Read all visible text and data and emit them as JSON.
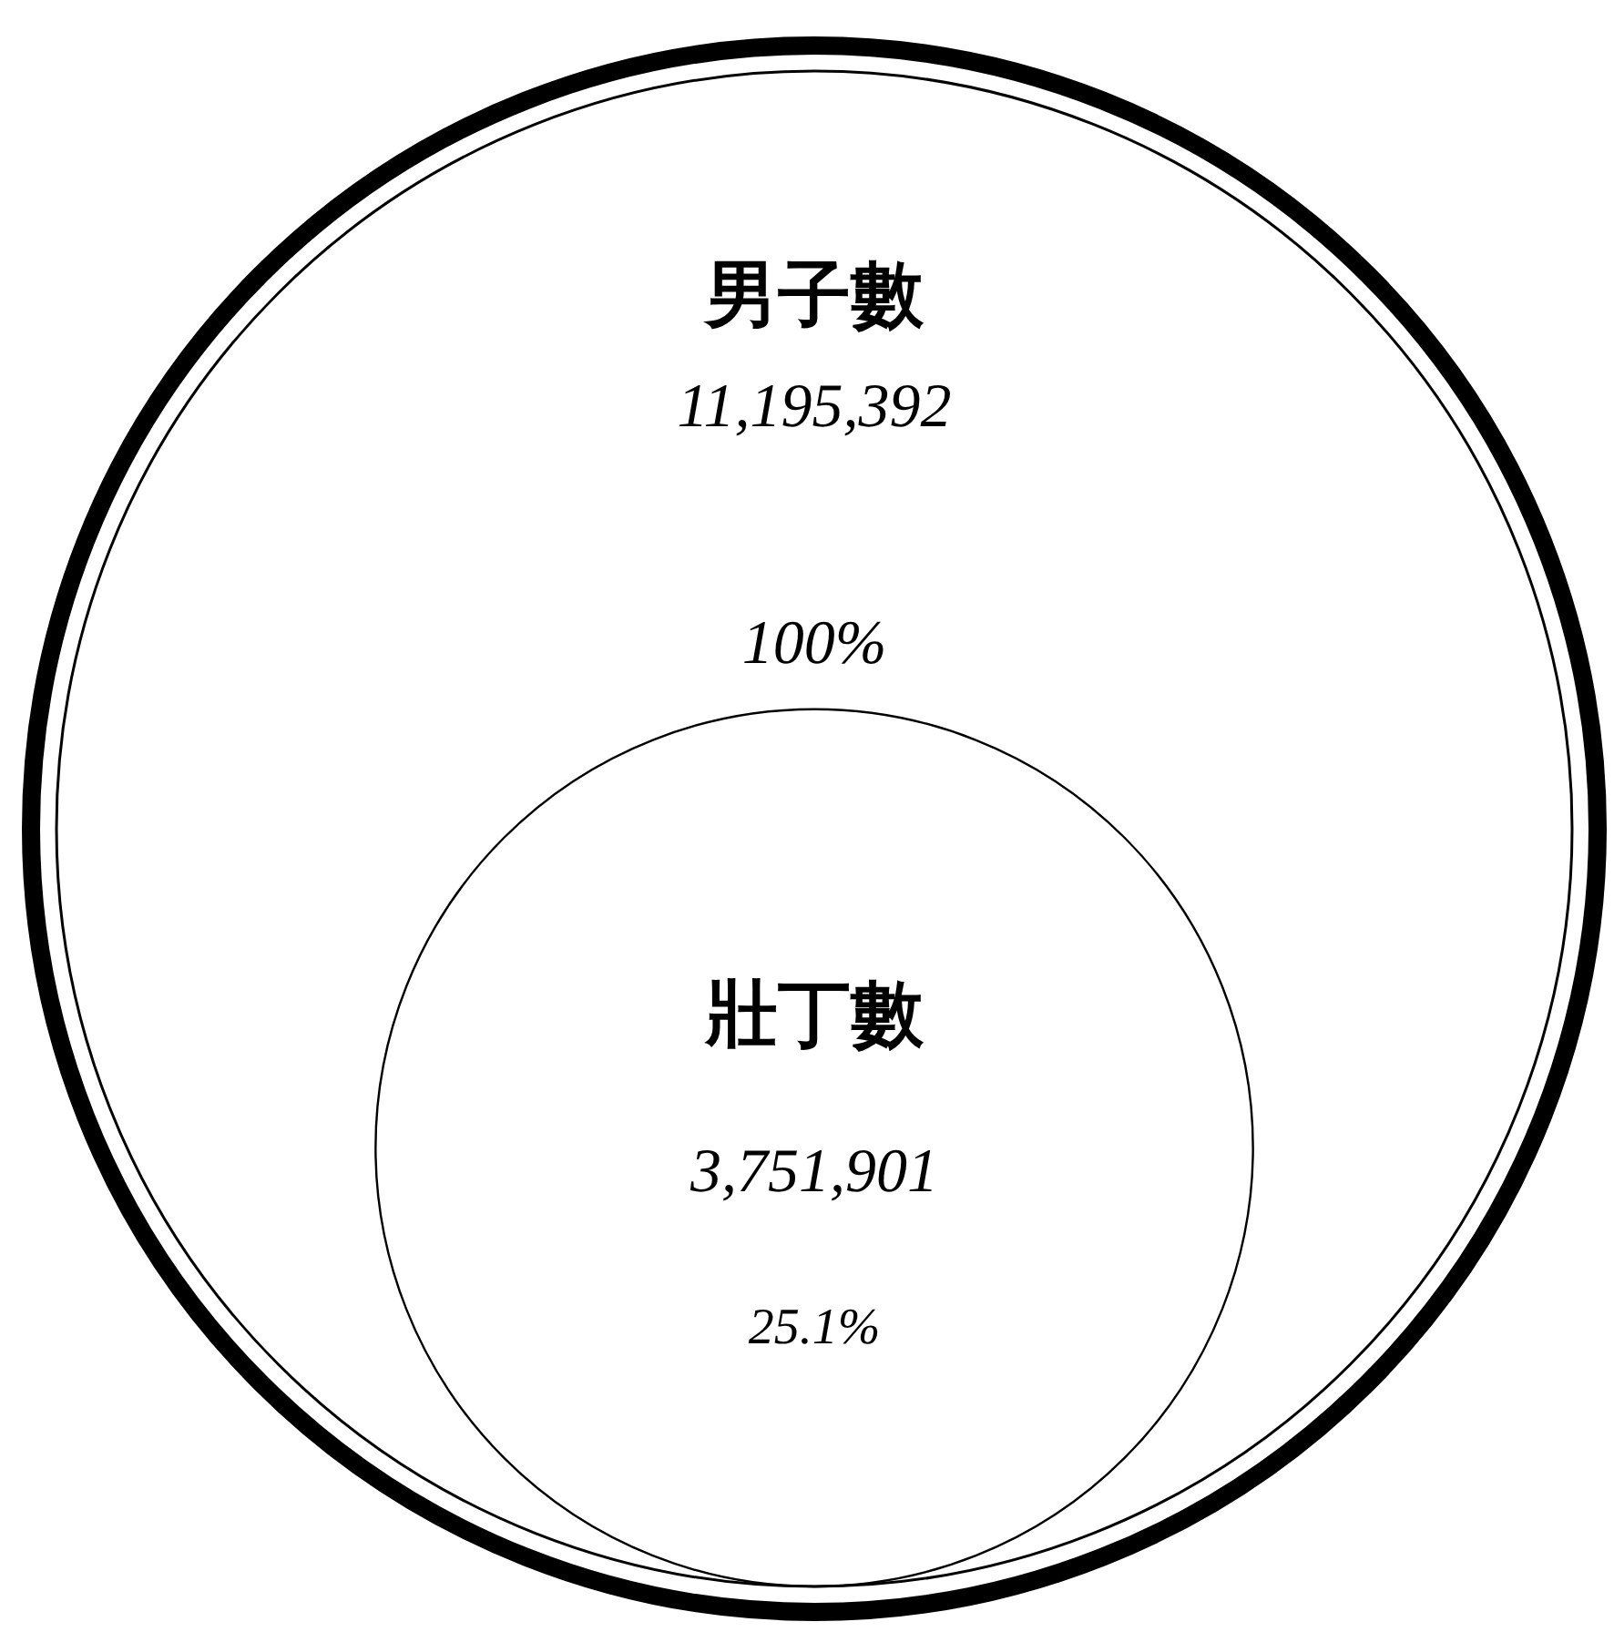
{
  "chart_data": {
    "type": "other",
    "categories": [
      "男子數",
      "壯丁數"
    ],
    "values": [
      11195392,
      3751901
    ],
    "value_labels": [
      "11,195,392",
      "3,751,901"
    ],
    "annotations": [
      "100%",
      "25.1%"
    ],
    "colors": [
      "#000000",
      "#000000"
    ]
  }
}
